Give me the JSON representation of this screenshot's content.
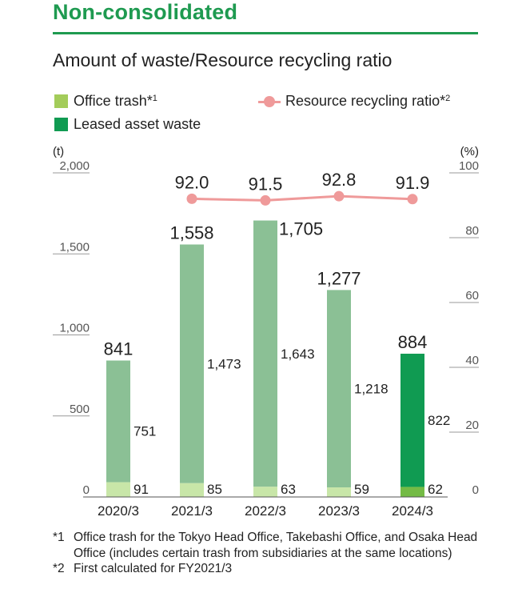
{
  "header": {
    "section_title": "Non-consolidated",
    "chart_title": "Amount of waste/Resource recycling ratio"
  },
  "legend": {
    "office_trash": "Office trash*",
    "office_trash_sup": "1",
    "leased_asset": "Leased asset waste",
    "ratio": "Resource recycling ratio*",
    "ratio_sup": "2"
  },
  "colors": {
    "office_trash_legend": "#a3cc5a",
    "office_trash_bar_light": "#c8e6a8",
    "office_trash_bar_2024": "#74bb45",
    "leased_asset_legend": "#109b52",
    "leased_asset_bar_light": "#8bc095",
    "leased_asset_bar_2024": "#109b52",
    "ratio_line": "#ef9a9a"
  },
  "chart_data": {
    "type": "bar",
    "stacked": true,
    "categories": [
      "2020/3",
      "2021/3",
      "2022/3",
      "2023/3",
      "2024/3"
    ],
    "series": [
      {
        "name": "Office trash",
        "values": [
          91,
          85,
          63,
          59,
          62
        ]
      },
      {
        "name": "Leased asset waste",
        "values": [
          751,
          1473,
          1643,
          1218,
          822
        ]
      }
    ],
    "totals": [
      "841",
      "1,558",
      "1,705",
      "1,277",
      "884"
    ],
    "office_labels": [
      "91",
      "85",
      "63",
      "59",
      "62"
    ],
    "leased_labels": [
      "751",
      "1,473",
      "1,643",
      "1,218",
      "822"
    ],
    "line_series": {
      "name": "Resource recycling ratio",
      "categories": [
        "2021/3",
        "2022/3",
        "2023/3",
        "2024/3"
      ],
      "values": [
        92.0,
        91.5,
        92.8,
        91.9
      ],
      "labels": [
        "92.0",
        "91.5",
        "92.8",
        "91.9"
      ]
    },
    "left_axis": {
      "unit": "(t)",
      "ylim": [
        0,
        2000
      ],
      "ticks": [
        "0",
        "500",
        "1,000",
        "1,500",
        "2,000"
      ]
    },
    "right_axis": {
      "unit": "(%)",
      "ylim": [
        0,
        100
      ],
      "ticks": [
        "0",
        "20",
        "40",
        "60",
        "80",
        "100"
      ]
    },
    "grid": false
  },
  "footnotes": [
    {
      "mark": "*1",
      "text": "Office trash for the Tokyo Head Office, Takebashi Office, and Osaka Head Office (includes certain trash from subsidiaries at the same locations)"
    },
    {
      "mark": "*2",
      "text": "First calculated for FY2021/3"
    }
  ]
}
